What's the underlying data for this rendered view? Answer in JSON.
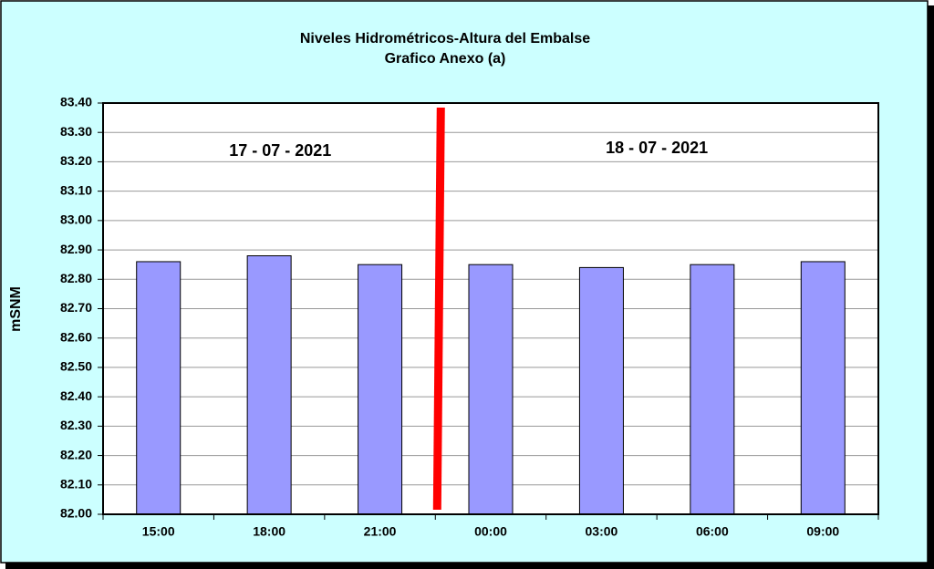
{
  "chart_data": {
    "type": "bar",
    "title": "Niveles Hidrométricos-Altura del Embalse",
    "subtitle": "Grafico Anexo (a)",
    "y_label": "mSNM",
    "categories": [
      "15:00",
      "18:00",
      "21:00",
      "00:00",
      "03:00",
      "06:00",
      "09:00"
    ],
    "values": [
      82.86,
      82.88,
      82.85,
      82.85,
      82.84,
      82.85,
      82.86
    ],
    "color": "#9999ff",
    "ylim": [
      82,
      83.4
    ],
    "yticks": [
      {
        "value": 82,
        "label": "82.00"
      },
      {
        "value": 82.1,
        "label": "82.10"
      },
      {
        "value": 82.2,
        "label": "82.20"
      },
      {
        "value": 82.3,
        "label": "82.30"
      },
      {
        "value": 82.4,
        "label": "82.40"
      },
      {
        "value": 82.5,
        "label": "82.50"
      },
      {
        "value": 82.6,
        "label": "82.60"
      },
      {
        "value": 82.7,
        "label": "82.70"
      },
      {
        "value": 82.8,
        "label": "82.80"
      },
      {
        "value": 82.9,
        "label": "82.90"
      },
      {
        "value": 83,
        "label": "83.00"
      },
      {
        "value": 83.1,
        "label": "83.10"
      },
      {
        "value": 83.2,
        "label": "83.20"
      },
      {
        "value": 83.3,
        "label": "83.30"
      },
      {
        "value": 83.4,
        "label": "83.40"
      }
    ],
    "grid": true,
    "annotations": [
      "17 - 07 - 2021",
      "18 - 07 - 2021"
    ]
  }
}
